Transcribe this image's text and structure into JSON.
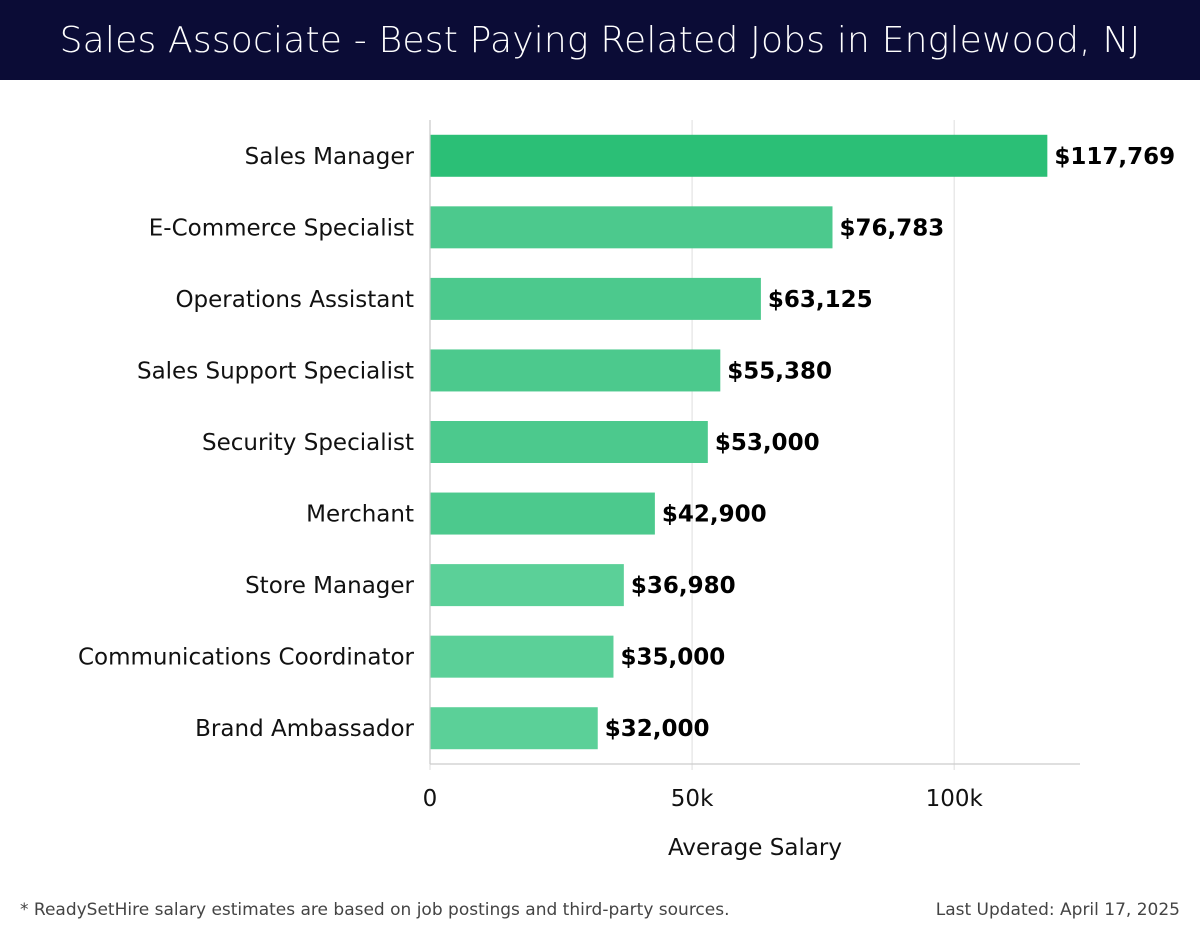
{
  "header": {
    "title": "Sales Associate - Best Paying Related Jobs in Englewood, NJ"
  },
  "chart_data": {
    "type": "bar",
    "orientation": "horizontal",
    "categories": [
      "Sales Manager",
      "E-Commerce Specialist",
      "Operations Assistant",
      "Sales Support Specialist",
      "Security Specialist",
      "Merchant",
      "Store Manager",
      "Communications Coordinator",
      "Brand Ambassador"
    ],
    "values": [
      117769,
      76783,
      63125,
      55380,
      53000,
      42900,
      36980,
      35000,
      32000
    ],
    "value_labels": [
      "$117,769",
      "$76,783",
      "$63,125",
      "$55,380",
      "$53,000",
      "$42,900",
      "$36,980",
      "$35,000",
      "$32,000"
    ],
    "xlabel": "Average Salary",
    "xlim": [
      0,
      124000
    ],
    "x_ticks": [
      0,
      50000,
      100000
    ],
    "x_tick_labels": [
      "0",
      "50k",
      "100k"
    ],
    "grid": "vertical",
    "colors": {
      "top_bar": "#2bbf76",
      "bar": "#4cc98d",
      "bar_light": "#5bd098",
      "grid": "#e3e3e3",
      "axis": "#cccccc",
      "label": "#111111"
    }
  },
  "footer": {
    "note": "* ReadySetHire salary estimates are based on job postings and third-party sources.",
    "updated": "Last Updated: April 17, 2025"
  }
}
